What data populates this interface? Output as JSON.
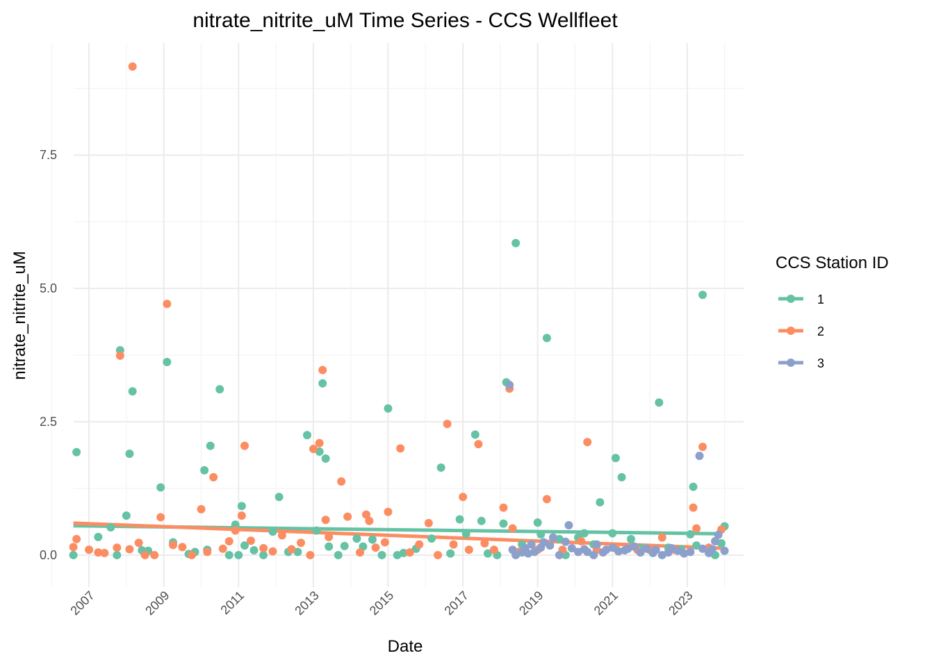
{
  "chart_data": {
    "type": "scatter",
    "title": "nitrate_nitrite_uM Time Series - CCS Wellfleet",
    "xlabel": "Date",
    "ylabel": "nitrate_nitrite_uM",
    "x_type": "date",
    "xlim": [
      "2006-05-01",
      "2024-08-01"
    ],
    "ylim": [
      -0.6,
      9.6
    ],
    "x_ticks": [
      "2007",
      "2009",
      "2011",
      "2013",
      "2015",
      "2017",
      "2019",
      "2021",
      "2023"
    ],
    "y_ticks": [
      "0.0",
      "2.5",
      "5.0",
      "7.5"
    ],
    "grid": true,
    "legend": {
      "title": "CCS Station ID",
      "position": "right"
    },
    "series": [
      {
        "name": "1",
        "color": "#66c2a5",
        "trend": [
          [
            "2006-08-01",
            0.55
          ],
          [
            "2023-12-01",
            0.4
          ]
        ],
        "points": [
          [
            "2006-08-01",
            0.0
          ],
          [
            "2006-09-01",
            1.93
          ],
          [
            "2007-04-01",
            0.34
          ],
          [
            "2007-08-01",
            0.52
          ],
          [
            "2007-10-01",
            0.0
          ],
          [
            "2007-11-01",
            3.84
          ],
          [
            "2008-01-01",
            0.74
          ],
          [
            "2008-02-01",
            1.9
          ],
          [
            "2008-03-01",
            3.07
          ],
          [
            "2008-06-01",
            0.09
          ],
          [
            "2008-08-01",
            0.08
          ],
          [
            "2008-12-01",
            1.27
          ],
          [
            "2009-02-01",
            3.62
          ],
          [
            "2009-04-01",
            0.24
          ],
          [
            "2009-09-01",
            0.02
          ],
          [
            "2009-11-01",
            0.06
          ],
          [
            "2010-02-01",
            1.59
          ],
          [
            "2010-03-01",
            0.1
          ],
          [
            "2010-04-01",
            2.05
          ],
          [
            "2010-07-01",
            3.11
          ],
          [
            "2010-10-01",
            0.0
          ],
          [
            "2010-12-01",
            0.57
          ],
          [
            "2011-01-01",
            0.0
          ],
          [
            "2011-02-01",
            0.92
          ],
          [
            "2011-03-01",
            0.18
          ],
          [
            "2011-06-01",
            0.09
          ],
          [
            "2011-09-01",
            0.0
          ],
          [
            "2011-12-01",
            0.44
          ],
          [
            "2012-02-01",
            1.09
          ],
          [
            "2012-05-01",
            0.06
          ],
          [
            "2012-08-01",
            0.06
          ],
          [
            "2012-11-01",
            2.25
          ],
          [
            "2013-02-01",
            0.46
          ],
          [
            "2013-03-01",
            1.94
          ],
          [
            "2013-04-01",
            3.22
          ],
          [
            "2013-05-01",
            1.81
          ],
          [
            "2013-06-01",
            0.16
          ],
          [
            "2013-09-01",
            0.0
          ],
          [
            "2013-11-01",
            0.17
          ],
          [
            "2014-03-01",
            0.31
          ],
          [
            "2014-05-01",
            0.16
          ],
          [
            "2014-08-01",
            0.29
          ],
          [
            "2014-11-01",
            0.0
          ],
          [
            "2015-01-01",
            2.75
          ],
          [
            "2015-04-01",
            0.0
          ],
          [
            "2015-06-01",
            0.04
          ],
          [
            "2015-10-01",
            0.12
          ],
          [
            "2016-03-01",
            0.31
          ],
          [
            "2016-06-01",
            1.64
          ],
          [
            "2016-09-01",
            0.03
          ],
          [
            "2016-12-01",
            0.67
          ],
          [
            "2017-02-01",
            0.4
          ],
          [
            "2017-05-01",
            2.26
          ],
          [
            "2017-07-01",
            0.64
          ],
          [
            "2017-09-01",
            0.03
          ],
          [
            "2017-12-01",
            0.0
          ],
          [
            "2018-02-01",
            0.59
          ],
          [
            "2018-03-01",
            3.24
          ],
          [
            "2018-06-01",
            5.85
          ],
          [
            "2018-08-01",
            0.2
          ],
          [
            "2019-01-01",
            0.61
          ],
          [
            "2019-02-01",
            0.39
          ],
          [
            "2019-04-01",
            4.07
          ],
          [
            "2019-08-01",
            0.3
          ],
          [
            "2019-10-01",
            0.0
          ],
          [
            "2020-02-01",
            0.33
          ],
          [
            "2020-04-01",
            0.41
          ],
          [
            "2020-07-01",
            0.2
          ],
          [
            "2020-09-01",
            0.99
          ],
          [
            "2021-01-01",
            0.41
          ],
          [
            "2021-02-01",
            1.82
          ],
          [
            "2021-04-01",
            1.46
          ],
          [
            "2021-07-01",
            0.3
          ],
          [
            "2021-10-01",
            0.14
          ],
          [
            "2022-01-01",
            0.1
          ],
          [
            "2022-04-01",
            2.86
          ],
          [
            "2022-07-01",
            0.14
          ],
          [
            "2022-11-01",
            0.11
          ],
          [
            "2023-02-01",
            0.39
          ],
          [
            "2023-03-01",
            1.28
          ],
          [
            "2023-04-01",
            0.18
          ],
          [
            "2023-06-01",
            4.88
          ],
          [
            "2023-10-01",
            0.0
          ],
          [
            "2023-12-01",
            0.22
          ],
          [
            "2024-01-01",
            0.54
          ]
        ]
      },
      {
        "name": "2",
        "color": "#fc8d62",
        "trend": [
          [
            "2006-08-01",
            0.6
          ],
          [
            "2023-12-01",
            0.13
          ]
        ],
        "points": [
          [
            "2006-08-01",
            0.15
          ],
          [
            "2006-09-01",
            0.3
          ],
          [
            "2007-01-01",
            0.1
          ],
          [
            "2007-04-01",
            0.05
          ],
          [
            "2007-06-01",
            0.04
          ],
          [
            "2007-10-01",
            0.14
          ],
          [
            "2007-11-01",
            3.74
          ],
          [
            "2008-02-01",
            0.11
          ],
          [
            "2008-03-01",
            9.16
          ],
          [
            "2008-05-01",
            0.23
          ],
          [
            "2008-07-01",
            0.0
          ],
          [
            "2008-10-01",
            0.0
          ],
          [
            "2008-12-01",
            0.71
          ],
          [
            "2009-02-01",
            4.71
          ],
          [
            "2009-04-01",
            0.19
          ],
          [
            "2009-07-01",
            0.15
          ],
          [
            "2009-10-01",
            0.0
          ],
          [
            "2010-01-01",
            0.86
          ],
          [
            "2010-03-01",
            0.06
          ],
          [
            "2010-05-01",
            1.46
          ],
          [
            "2010-08-01",
            0.12
          ],
          [
            "2010-10-01",
            0.26
          ],
          [
            "2010-12-01",
            0.46
          ],
          [
            "2011-02-01",
            0.74
          ],
          [
            "2011-03-01",
            2.05
          ],
          [
            "2011-05-01",
            0.27
          ],
          [
            "2011-09-01",
            0.13
          ],
          [
            "2011-12-01",
            0.07
          ],
          [
            "2012-03-01",
            0.37
          ],
          [
            "2012-06-01",
            0.11
          ],
          [
            "2012-09-01",
            0.23
          ],
          [
            "2012-12-01",
            0.0
          ],
          [
            "2013-01-01",
            1.99
          ],
          [
            "2013-03-01",
            2.1
          ],
          [
            "2013-04-01",
            3.47
          ],
          [
            "2013-05-01",
            0.66
          ],
          [
            "2013-06-01",
            0.34
          ],
          [
            "2013-10-01",
            1.38
          ],
          [
            "2013-12-01",
            0.72
          ],
          [
            "2014-04-01",
            0.05
          ],
          [
            "2014-06-01",
            0.76
          ],
          [
            "2014-07-01",
            0.64
          ],
          [
            "2014-09-01",
            0.14
          ],
          [
            "2014-12-01",
            0.24
          ],
          [
            "2015-01-01",
            0.81
          ],
          [
            "2015-05-01",
            2.0
          ],
          [
            "2015-08-01",
            0.05
          ],
          [
            "2015-11-01",
            0.2
          ],
          [
            "2016-02-01",
            0.6
          ],
          [
            "2016-05-01",
            0.0
          ],
          [
            "2016-08-01",
            2.46
          ],
          [
            "2016-10-01",
            0.2
          ],
          [
            "2017-01-01",
            1.09
          ],
          [
            "2017-03-01",
            0.1
          ],
          [
            "2017-06-01",
            2.08
          ],
          [
            "2017-08-01",
            0.22
          ],
          [
            "2017-11-01",
            0.1
          ],
          [
            "2018-02-01",
            0.89
          ],
          [
            "2018-04-01",
            3.12
          ],
          [
            "2018-05-01",
            0.5
          ],
          [
            "2018-07-01",
            0.06
          ],
          [
            "2019-01-01",
            0.1
          ],
          [
            "2019-04-01",
            1.05
          ],
          [
            "2019-09-01",
            0.1
          ],
          [
            "2020-03-01",
            0.26
          ],
          [
            "2020-05-01",
            2.12
          ],
          [
            "2020-08-01",
            0.1
          ],
          [
            "2021-02-01",
            0.13
          ],
          [
            "2021-06-01",
            0.15
          ],
          [
            "2021-09-01",
            0.1
          ],
          [
            "2022-01-01",
            0.1
          ],
          [
            "2022-05-01",
            0.33
          ],
          [
            "2022-09-01",
            0.1
          ],
          [
            "2023-03-01",
            0.89
          ],
          [
            "2023-04-01",
            0.5
          ],
          [
            "2023-06-01",
            2.03
          ],
          [
            "2023-08-01",
            0.14
          ],
          [
            "2023-12-01",
            0.48
          ]
        ]
      },
      {
        "name": "3",
        "color": "#8da0cb",
        "trend": [],
        "points": [
          [
            "2018-04-01",
            3.19
          ],
          [
            "2018-05-01",
            0.1
          ],
          [
            "2018-06-01",
            0.0
          ],
          [
            "2018-08-01",
            0.05
          ],
          [
            "2018-09-01",
            0.13
          ],
          [
            "2018-10-01",
            0.03
          ],
          [
            "2018-11-01",
            0.2
          ],
          [
            "2018-12-01",
            0.06
          ],
          [
            "2019-02-01",
            0.14
          ],
          [
            "2019-03-01",
            0.24
          ],
          [
            "2019-05-01",
            0.18
          ],
          [
            "2019-06-01",
            0.33
          ],
          [
            "2019-08-01",
            0.0
          ],
          [
            "2019-10-01",
            0.25
          ],
          [
            "2019-11-01",
            0.56
          ],
          [
            "2019-12-01",
            0.13
          ],
          [
            "2020-02-01",
            0.06
          ],
          [
            "2020-04-01",
            0.11
          ],
          [
            "2020-05-01",
            0.06
          ],
          [
            "2020-07-01",
            0.0
          ],
          [
            "2020-08-01",
            0.2
          ],
          [
            "2020-10-01",
            0.05
          ],
          [
            "2020-11-01",
            0.1
          ],
          [
            "2021-01-01",
            0.14
          ],
          [
            "2021-03-01",
            0.07
          ],
          [
            "2021-05-01",
            0.09
          ],
          [
            "2021-06-01",
            0.12
          ],
          [
            "2021-08-01",
            0.16
          ],
          [
            "2021-10-01",
            0.05
          ],
          [
            "2021-12-01",
            0.12
          ],
          [
            "2022-02-01",
            0.04
          ],
          [
            "2022-03-01",
            0.1
          ],
          [
            "2022-05-01",
            0.0
          ],
          [
            "2022-07-01",
            0.05
          ],
          [
            "2022-08-01",
            0.13
          ],
          [
            "2022-10-01",
            0.08
          ],
          [
            "2022-12-01",
            0.03
          ],
          [
            "2023-02-01",
            0.06
          ],
          [
            "2023-05-01",
            1.86
          ],
          [
            "2023-06-01",
            0.12
          ],
          [
            "2023-08-01",
            0.04
          ],
          [
            "2023-09-01",
            0.11
          ],
          [
            "2023-10-01",
            0.26
          ],
          [
            "2023-11-01",
            0.38
          ],
          [
            "2024-01-01",
            0.08
          ]
        ]
      }
    ]
  }
}
